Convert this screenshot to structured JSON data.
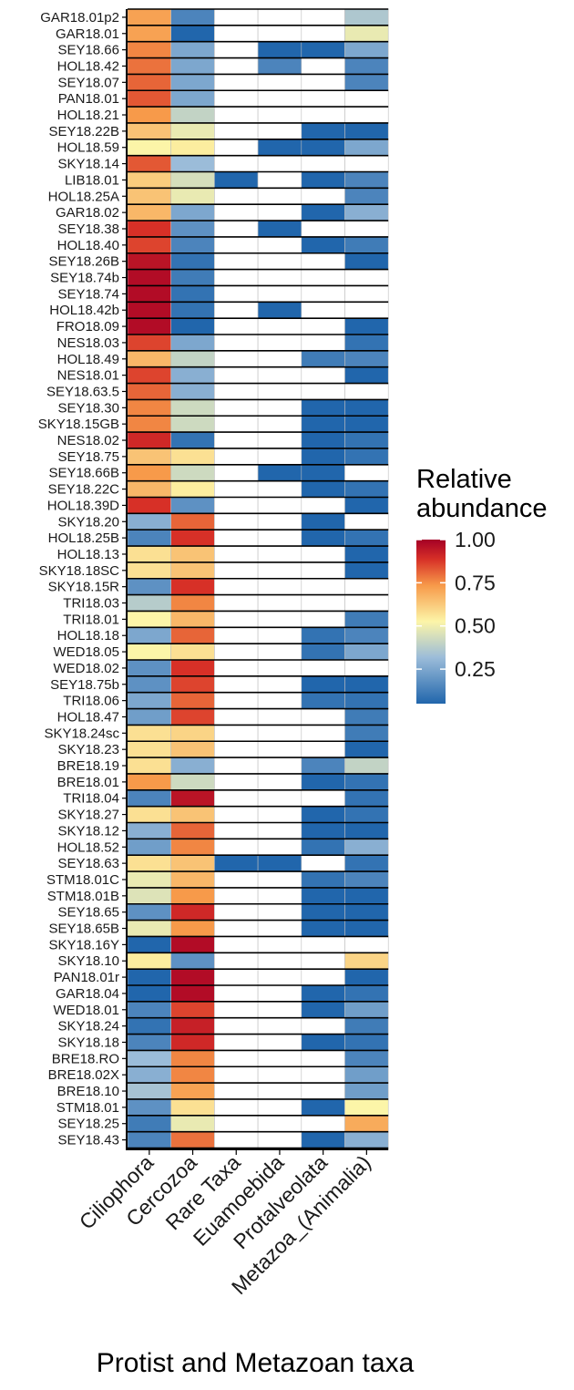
{
  "chart_data": {
    "type": "heatmap",
    "x_title": "Protist and Metazoan taxa",
    "legend": {
      "title": [
        "Relative",
        "abundance"
      ],
      "ticks": [
        1.0,
        0.75,
        0.5,
        0.25
      ],
      "tick_labels": [
        "1.00",
        "0.75",
        "0.50",
        "0.25"
      ],
      "range": [
        0.05,
        1.0
      ],
      "placement": "right",
      "colors": [
        "#2166ac",
        "#fcf5a8",
        "#f79a4a",
        "#a50026"
      ]
    },
    "colors": {
      "missing": "#ffffff",
      "grid": "#bdbdbd",
      "separator": "#000000"
    },
    "columns": [
      "Ciliophora",
      "Cercozoa",
      "Rare Taxa",
      "Euamoebida",
      "Protalveolata",
      "Metazoa_(Animalia)"
    ],
    "rows": [
      {
        "name": "GAR18.01p2",
        "values": [
          0.7,
          0.12,
          null,
          null,
          null,
          0.3
        ]
      },
      {
        "name": "GAR18.01",
        "values": [
          0.7,
          0.05,
          null,
          null,
          null,
          0.45
        ]
      },
      {
        "name": "SEY18.66",
        "values": [
          0.75,
          0.2,
          null,
          0.05,
          0.05,
          0.2
        ]
      },
      {
        "name": "HOL18.42",
        "values": [
          0.78,
          0.2,
          null,
          0.12,
          null,
          0.12
        ]
      },
      {
        "name": "SEY18.07",
        "values": [
          0.8,
          0.2,
          null,
          null,
          null,
          0.12
        ]
      },
      {
        "name": "PAN18.01",
        "values": [
          0.82,
          0.2,
          null,
          null,
          null,
          null
        ]
      },
      {
        "name": "HOL18.21",
        "values": [
          0.72,
          0.35,
          null,
          null,
          null,
          null
        ]
      },
      {
        "name": "SEY18.22B",
        "values": [
          0.62,
          0.45,
          null,
          null,
          0.05,
          0.05
        ]
      },
      {
        "name": "HOL18.59",
        "values": [
          0.5,
          0.52,
          null,
          0.05,
          0.05,
          0.2
        ]
      },
      {
        "name": "SKY18.14",
        "values": [
          0.82,
          0.25,
          null,
          null,
          null,
          null
        ]
      },
      {
        "name": "LIB18.01",
        "values": [
          0.6,
          0.4,
          0.05,
          null,
          0.05,
          0.12
        ]
      },
      {
        "name": "HOL18.25A",
        "values": [
          0.62,
          0.45,
          null,
          null,
          null,
          0.12
        ]
      },
      {
        "name": "GAR18.02",
        "values": [
          0.65,
          0.2,
          null,
          null,
          0.05,
          0.22
        ]
      },
      {
        "name": "SEY18.38",
        "values": [
          0.88,
          0.15,
          null,
          0.05,
          null,
          null
        ]
      },
      {
        "name": "HOL18.40",
        "values": [
          0.85,
          0.12,
          null,
          null,
          0.05,
          0.1
        ]
      },
      {
        "name": "SEY18.26B",
        "values": [
          0.95,
          0.08,
          null,
          null,
          null,
          0.05
        ]
      },
      {
        "name": "SEY18.74b",
        "values": [
          0.97,
          0.1,
          null,
          null,
          null,
          null
        ]
      },
      {
        "name": "SEY18.74",
        "values": [
          0.97,
          0.08,
          null,
          null,
          null,
          null
        ]
      },
      {
        "name": "HOL18.42b",
        "values": [
          0.97,
          0.08,
          null,
          0.05,
          null,
          null
        ]
      },
      {
        "name": "FRO18.09",
        "values": [
          0.97,
          0.05,
          null,
          null,
          null,
          0.05
        ]
      },
      {
        "name": "NES18.03",
        "values": [
          0.85,
          0.2,
          null,
          null,
          null,
          0.08
        ]
      },
      {
        "name": "HOL18.49",
        "values": [
          0.65,
          0.35,
          null,
          null,
          0.1,
          0.12
        ]
      },
      {
        "name": "NES18.01",
        "values": [
          0.85,
          0.22,
          null,
          null,
          null,
          0.05
        ]
      },
      {
        "name": "SEY18.63.5",
        "values": [
          0.8,
          0.22,
          null,
          null,
          null,
          null
        ]
      },
      {
        "name": "SEY18.30",
        "values": [
          0.75,
          0.38,
          null,
          null,
          0.05,
          0.05
        ]
      },
      {
        "name": "SKY18.15GB",
        "values": [
          0.75,
          0.38,
          null,
          null,
          0.05,
          0.05
        ]
      },
      {
        "name": "NES18.02",
        "values": [
          0.9,
          0.08,
          null,
          null,
          0.05,
          0.08
        ]
      },
      {
        "name": "SEY18.75",
        "values": [
          0.62,
          0.55,
          null,
          null,
          0.05,
          0.08
        ]
      },
      {
        "name": "SEY18.66B",
        "values": [
          0.72,
          0.38,
          null,
          0.05,
          0.05,
          null
        ]
      },
      {
        "name": "SEY18.22C",
        "values": [
          0.65,
          0.52,
          null,
          null,
          0.05,
          0.08
        ]
      },
      {
        "name": "HOL18.39D",
        "values": [
          0.88,
          0.15,
          null,
          null,
          null,
          0.05
        ]
      },
      {
        "name": "SKY18.20",
        "values": [
          0.22,
          0.8,
          null,
          null,
          0.05,
          null
        ]
      },
      {
        "name": "HOL18.25B",
        "values": [
          0.12,
          0.88,
          null,
          null,
          0.05,
          0.08
        ]
      },
      {
        "name": "HOL18.13",
        "values": [
          0.55,
          0.62,
          null,
          null,
          null,
          0.05
        ]
      },
      {
        "name": "SKY18.18SC",
        "values": [
          0.55,
          0.62,
          null,
          null,
          null,
          0.05
        ]
      },
      {
        "name": "SKY18.15R",
        "values": [
          0.15,
          0.88,
          null,
          null,
          null,
          null
        ]
      },
      {
        "name": "TRI18.03",
        "values": [
          0.32,
          0.75,
          null,
          null,
          null,
          null
        ]
      },
      {
        "name": "TRI18.01",
        "values": [
          0.5,
          0.65,
          null,
          null,
          null,
          0.1
        ]
      },
      {
        "name": "HOL18.18",
        "values": [
          0.2,
          0.8,
          null,
          null,
          0.08,
          0.12
        ]
      },
      {
        "name": "WED18.05",
        "values": [
          0.5,
          0.55,
          null,
          null,
          0.08,
          0.2
        ]
      },
      {
        "name": "WED18.02",
        "values": [
          0.15,
          0.88,
          null,
          null,
          null,
          null
        ]
      },
      {
        "name": "SEY18.75b",
        "values": [
          0.15,
          0.85,
          null,
          null,
          0.05,
          0.05
        ]
      },
      {
        "name": "TRI18.06",
        "values": [
          0.2,
          0.8,
          null,
          null,
          0.08,
          0.08
        ]
      },
      {
        "name": "HOL18.47",
        "values": [
          0.18,
          0.85,
          null,
          null,
          null,
          0.1
        ]
      },
      {
        "name": "SKY18.24sc",
        "values": [
          0.55,
          0.58,
          null,
          null,
          null,
          0.1
        ]
      },
      {
        "name": "SKY18.23",
        "values": [
          0.55,
          0.62,
          null,
          null,
          null,
          0.05
        ]
      },
      {
        "name": "BRE18.19",
        "values": [
          0.55,
          0.22,
          null,
          null,
          0.12,
          0.35
        ]
      },
      {
        "name": "BRE18.01",
        "values": [
          0.72,
          0.38,
          null,
          null,
          0.05,
          0.08
        ]
      },
      {
        "name": "TRI18.04",
        "values": [
          0.12,
          0.95,
          null,
          null,
          null,
          0.08
        ]
      },
      {
        "name": "SKY18.27",
        "values": [
          0.55,
          0.62,
          null,
          null,
          0.05,
          0.08
        ]
      },
      {
        "name": "SKY18.12",
        "values": [
          0.22,
          0.8,
          null,
          null,
          0.05,
          0.05
        ]
      },
      {
        "name": "HOL18.52",
        "values": [
          0.18,
          0.75,
          null,
          null,
          0.08,
          0.22
        ]
      },
      {
        "name": "SEY18.63",
        "values": [
          0.55,
          0.62,
          0.05,
          0.05,
          null,
          0.08
        ]
      },
      {
        "name": "STM18.01C",
        "values": [
          0.45,
          0.65,
          null,
          null,
          0.08,
          0.12
        ]
      },
      {
        "name": "STM18.01B",
        "values": [
          0.42,
          0.72,
          null,
          null,
          0.05,
          0.05
        ]
      },
      {
        "name": "SEY18.65",
        "values": [
          0.15,
          0.9,
          null,
          null,
          0.05,
          0.05
        ]
      },
      {
        "name": "SEY18.65B",
        "values": [
          0.45,
          0.72,
          null,
          null,
          0.05,
          0.05
        ]
      },
      {
        "name": "SKY18.16Y",
        "values": [
          0.05,
          0.97,
          null,
          null,
          null,
          null
        ]
      },
      {
        "name": "SKY18.10",
        "values": [
          0.52,
          0.15,
          null,
          null,
          null,
          0.58
        ]
      },
      {
        "name": "PAN18.01r",
        "values": [
          0.05,
          0.97,
          null,
          null,
          null,
          0.05
        ]
      },
      {
        "name": "GAR18.04",
        "values": [
          0.05,
          0.97,
          null,
          null,
          0.05,
          0.08
        ]
      },
      {
        "name": "WED18.01",
        "values": [
          0.12,
          0.85,
          null,
          null,
          0.05,
          0.18
        ]
      },
      {
        "name": "SKY18.24",
        "values": [
          0.08,
          0.92,
          null,
          null,
          null,
          0.1
        ]
      },
      {
        "name": "SKY18.18",
        "values": [
          0.12,
          0.9,
          null,
          null,
          0.05,
          0.08
        ]
      },
      {
        "name": "BRE18.RO",
        "values": [
          0.25,
          0.75,
          null,
          null,
          null,
          0.12
        ]
      },
      {
        "name": "BRE18.02X",
        "values": [
          0.22,
          0.75,
          null,
          null,
          null,
          0.18
        ]
      },
      {
        "name": "BRE18.10",
        "values": [
          0.28,
          0.7,
          null,
          null,
          null,
          0.18
        ]
      },
      {
        "name": "STM18.01",
        "values": [
          0.15,
          0.55,
          null,
          null,
          0.05,
          0.5
        ]
      },
      {
        "name": "SEY18.25",
        "values": [
          0.1,
          0.45,
          null,
          null,
          null,
          0.68
        ]
      },
      {
        "name": "SEY18.43",
        "values": [
          0.12,
          0.78,
          null,
          null,
          0.05,
          0.22
        ]
      }
    ]
  }
}
